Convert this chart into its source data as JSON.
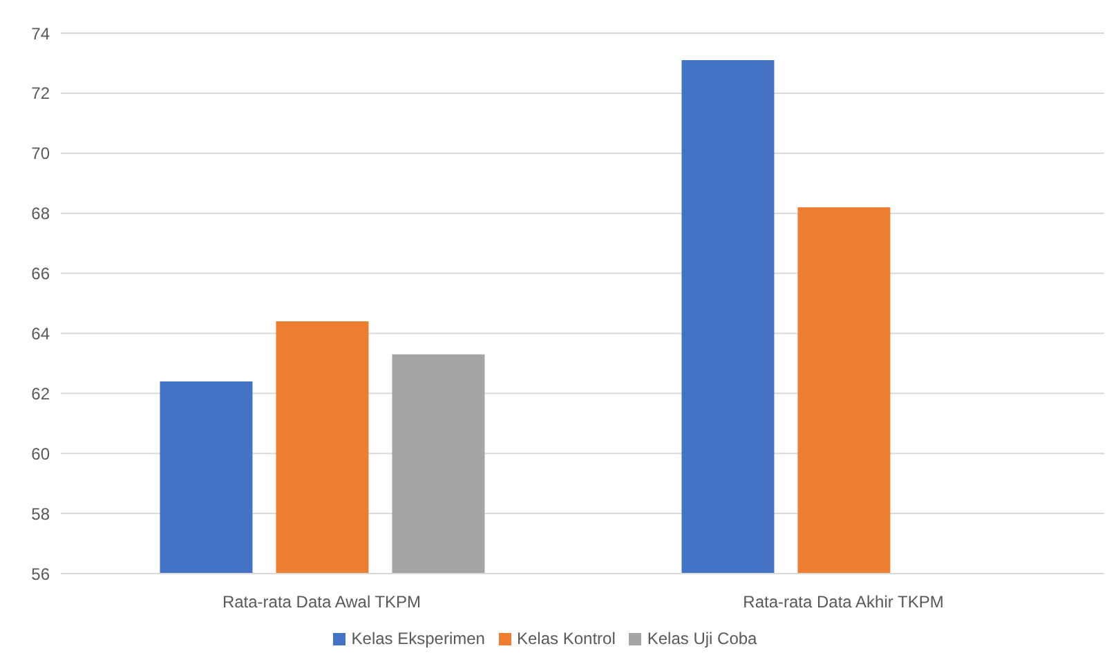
{
  "chart_data": {
    "type": "bar",
    "categories": [
      "Rata-rata Data Awal TKPM",
      "Rata-rata Data Akhir TKPM"
    ],
    "series": [
      {
        "name": "Kelas Eksperimen",
        "color": "#4472c4",
        "values": [
          62.4,
          73.1
        ]
      },
      {
        "name": "Kelas Kontrol",
        "color": "#ed7d31",
        "values": [
          64.4,
          68.2
        ]
      },
      {
        "name": "Kelas Uji Coba",
        "color": "#a5a5a5",
        "values": [
          63.3,
          null
        ]
      }
    ],
    "ylim": [
      56,
      74
    ],
    "yticks": [
      56,
      58,
      60,
      62,
      64,
      66,
      68,
      70,
      72,
      74
    ],
    "grid": "y",
    "legend": "bottom"
  }
}
